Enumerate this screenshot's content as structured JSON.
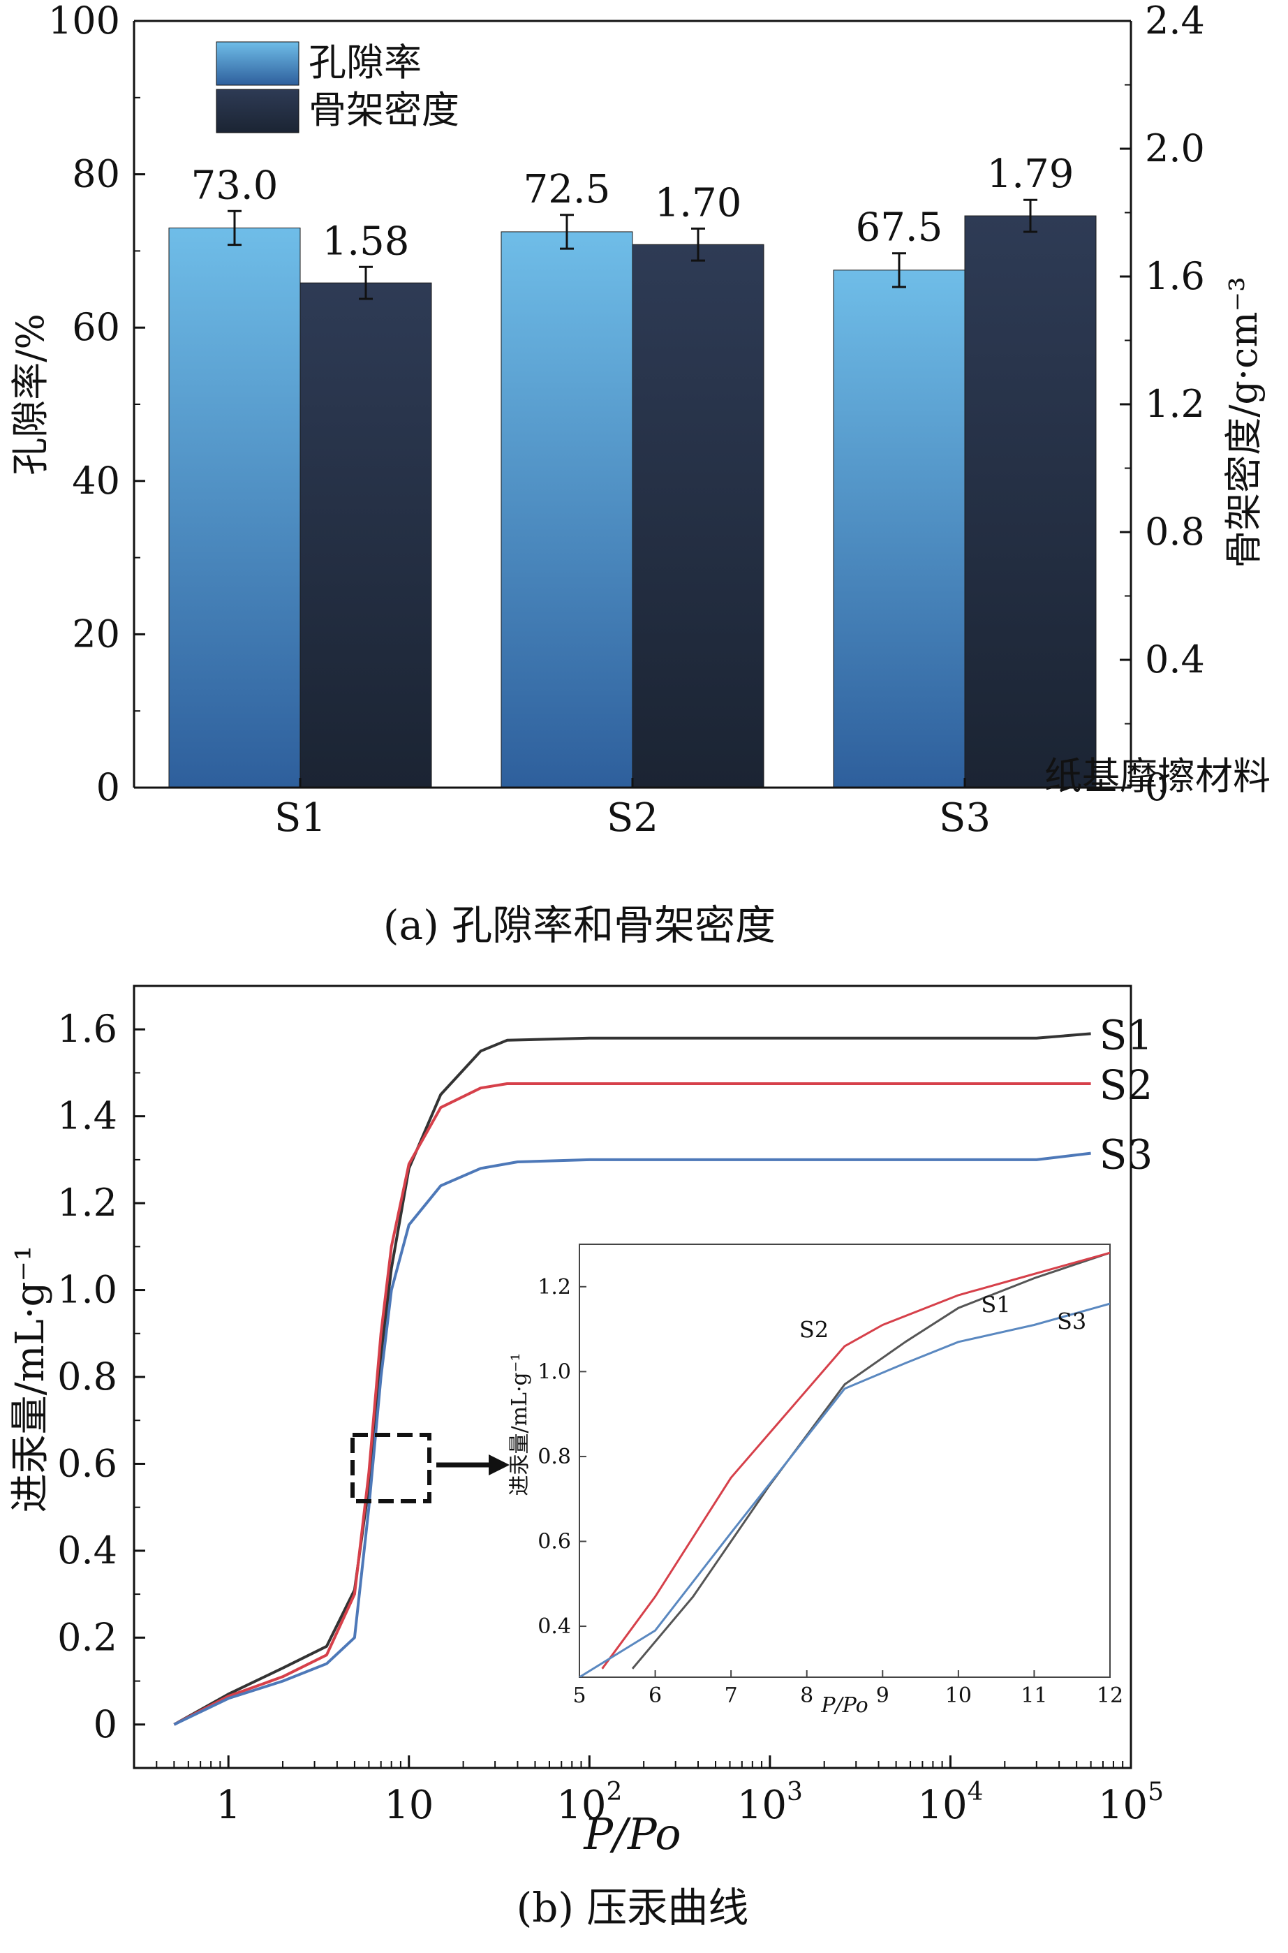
{
  "chart_data": [
    {
      "type": "bar",
      "caption": "(a) 孔隙率和骨架密度",
      "xlabel": "纸基摩擦材料",
      "ylabel_left": "孔隙率/%",
      "ylabel_right": "骨架密度/g·cm⁻³",
      "categories": [
        "S1",
        "S2",
        "S3"
      ],
      "left_axis": {
        "ylim": [
          0,
          100
        ],
        "ticks": [
          "0",
          "20",
          "40",
          "60",
          "80",
          "100"
        ]
      },
      "right_axis": {
        "ylim": [
          0,
          2.4
        ],
        "ticks": [
          "0",
          "0.4",
          "0.8",
          "1.2",
          "1.6",
          "2.0",
          "2.4"
        ]
      },
      "legend_position": "top-left",
      "series": [
        {
          "name": "孔隙率",
          "axis": "left",
          "values": [
            73.0,
            72.5,
            67.5
          ],
          "labels": [
            "73.0",
            "72.5",
            "67.5"
          ],
          "errors": [
            2.2,
            2.2,
            2.2
          ],
          "color_top": "#6fbde8",
          "color_bottom": "#2e5f9c"
        },
        {
          "name": "骨架密度",
          "axis": "right",
          "values": [
            1.58,
            1.7,
            1.79
          ],
          "labels": [
            "1.58",
            "1.70",
            "1.79"
          ],
          "errors": [
            0.05,
            0.05,
            0.05
          ],
          "color_top": "#2e3b55",
          "color_bottom": "#1b2433"
        }
      ]
    },
    {
      "type": "line",
      "caption": "(b) 压汞曲线",
      "xlabel": "P/Po",
      "ylabel": "进汞量/mL·g⁻¹",
      "x_scale": "log",
      "xlim": [
        0.3,
        100000
      ],
      "ylim": [
        -0.1,
        1.7
      ],
      "x_ticks": [
        {
          "value": 1,
          "base": "1",
          "exp": ""
        },
        {
          "value": 10,
          "base": "10",
          "exp": ""
        },
        {
          "value": 100,
          "base": "10",
          "exp": "2"
        },
        {
          "value": 1000,
          "base": "10",
          "exp": "3"
        },
        {
          "value": 10000,
          "base": "10",
          "exp": "4"
        },
        {
          "value": 100000,
          "base": "10",
          "exp": "5"
        }
      ],
      "y_ticks": [
        "0",
        "0.2",
        "0.4",
        "0.6",
        "0.8",
        "1.0",
        "1.2",
        "1.4",
        "1.6"
      ],
      "series": [
        {
          "name": "S1",
          "color": "#333333",
          "points": [
            [
              0.5,
              0
            ],
            [
              1,
              0.07
            ],
            [
              2,
              0.13
            ],
            [
              3.5,
              0.18
            ],
            [
              5,
              0.31
            ],
            [
              6,
              0.55
            ],
            [
              7,
              0.85
            ],
            [
              8,
              1.05
            ],
            [
              10,
              1.28
            ],
            [
              15,
              1.45
            ],
            [
              25,
              1.55
            ],
            [
              35,
              1.575
            ],
            [
              100,
              1.58
            ],
            [
              30000,
              1.58
            ],
            [
              60000,
              1.59
            ]
          ]
        },
        {
          "name": "S2",
          "color": "#d6404a",
          "points": [
            [
              0.5,
              0
            ],
            [
              1,
              0.065
            ],
            [
              2,
              0.11
            ],
            [
              3.5,
              0.16
            ],
            [
              5,
              0.3
            ],
            [
              6,
              0.58
            ],
            [
              7,
              0.9
            ],
            [
              8,
              1.1
            ],
            [
              10,
              1.29
            ],
            [
              15,
              1.42
            ],
            [
              25,
              1.465
            ],
            [
              35,
              1.475
            ],
            [
              100,
              1.475
            ],
            [
              60000,
              1.475
            ]
          ]
        },
        {
          "name": "S3",
          "color": "#4d78b8",
          "points": [
            [
              0.5,
              0
            ],
            [
              1,
              0.06
            ],
            [
              2,
              0.1
            ],
            [
              3.5,
              0.14
            ],
            [
              5,
              0.2
            ],
            [
              6,
              0.5
            ],
            [
              7,
              0.8
            ],
            [
              8,
              1.0
            ],
            [
              10,
              1.15
            ],
            [
              15,
              1.24
            ],
            [
              25,
              1.28
            ],
            [
              40,
              1.295
            ],
            [
              100,
              1.3
            ],
            [
              30000,
              1.3
            ],
            [
              60000,
              1.315
            ]
          ]
        }
      ],
      "inset": {
        "xlabel": "P/Po",
        "ylabel": "进汞量/mL·g⁻¹",
        "xlim": [
          5,
          12
        ],
        "ylim": [
          0.28,
          1.3
        ],
        "x_ticks": [
          "5",
          "6",
          "7",
          "8",
          "9",
          "10",
          "11",
          "12"
        ],
        "y_ticks": [
          "0.4",
          "0.6",
          "0.8",
          "1.0",
          "1.2"
        ],
        "series": [
          {
            "name": "S1",
            "color": "#555555",
            "points": [
              [
                5.7,
                0.3
              ],
              [
                6.5,
                0.47
              ],
              [
                7.5,
                0.73
              ],
              [
                8.5,
                0.97
              ],
              [
                9.3,
                1.07
              ],
              [
                10,
                1.15
              ],
              [
                11,
                1.22
              ],
              [
                12,
                1.28
              ]
            ]
          },
          {
            "name": "S2",
            "color": "#d6404a",
            "points": [
              [
                5.3,
                0.3
              ],
              [
                6,
                0.47
              ],
              [
                7,
                0.75
              ],
              [
                8.5,
                1.06
              ],
              [
                9,
                1.11
              ],
              [
                10,
                1.18
              ],
              [
                11,
                1.23
              ],
              [
                12,
                1.28
              ]
            ]
          },
          {
            "name": "S3",
            "color": "#5a88c0",
            "points": [
              [
                5,
                0.28
              ],
              [
                6,
                0.39
              ],
              [
                7,
                0.62
              ],
              [
                8.5,
                0.96
              ],
              [
                9.3,
                1.02
              ],
              [
                10,
                1.07
              ],
              [
                11,
                1.11
              ],
              [
                12,
                1.16
              ]
            ]
          }
        ],
        "labels": [
          {
            "text": "S2",
            "x": 7.9,
            "y": 1.08
          },
          {
            "text": "S1",
            "x": 10.3,
            "y": 1.14
          },
          {
            "text": "S3",
            "x": 11.3,
            "y": 1.1
          }
        ]
      }
    }
  ]
}
